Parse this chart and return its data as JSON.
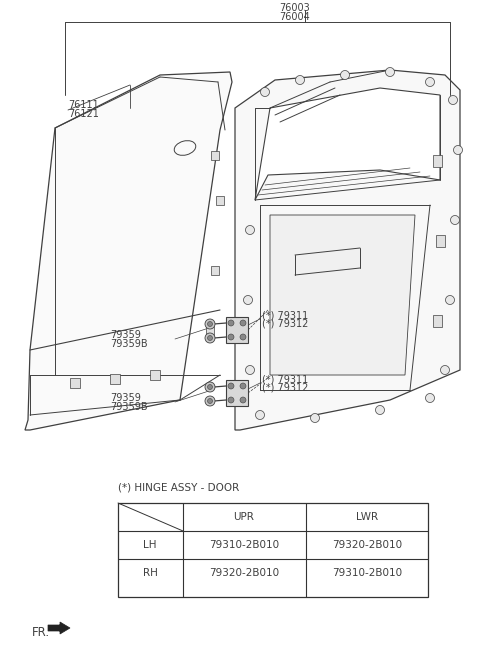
{
  "bg_color": "#ffffff",
  "line_color": "#404040",
  "text_color": "#404040",
  "label_fontsize": 7.0,
  "table_fontsize": 7.5,
  "table_title": "(*) HINGE ASSY - DOOR",
  "table_col_labels": [
    "",
    "UPR",
    "LWR"
  ],
  "table_row_labels": [
    "LH",
    "RH"
  ],
  "table_data": [
    [
      "79310-2B010",
      "79320-2B010"
    ],
    [
      "79320-2B010",
      "79310-2B010"
    ]
  ],
  "labels_76003_76004": [
    "76003",
    "76004"
  ],
  "labels_76111_76121": [
    "76111",
    "76121"
  ],
  "label_79311_upper": "(*) 79311",
  "label_79312_upper": "(*) 79312",
  "label_79359_upper": "79359",
  "label_79359B_upper": "79359B",
  "label_79311_lower": "(*) 79311",
  "label_79312_lower": "(*) 79312",
  "label_79359_lower": "79359",
  "label_79359B_lower": "79359B",
  "fr_text": "FR."
}
